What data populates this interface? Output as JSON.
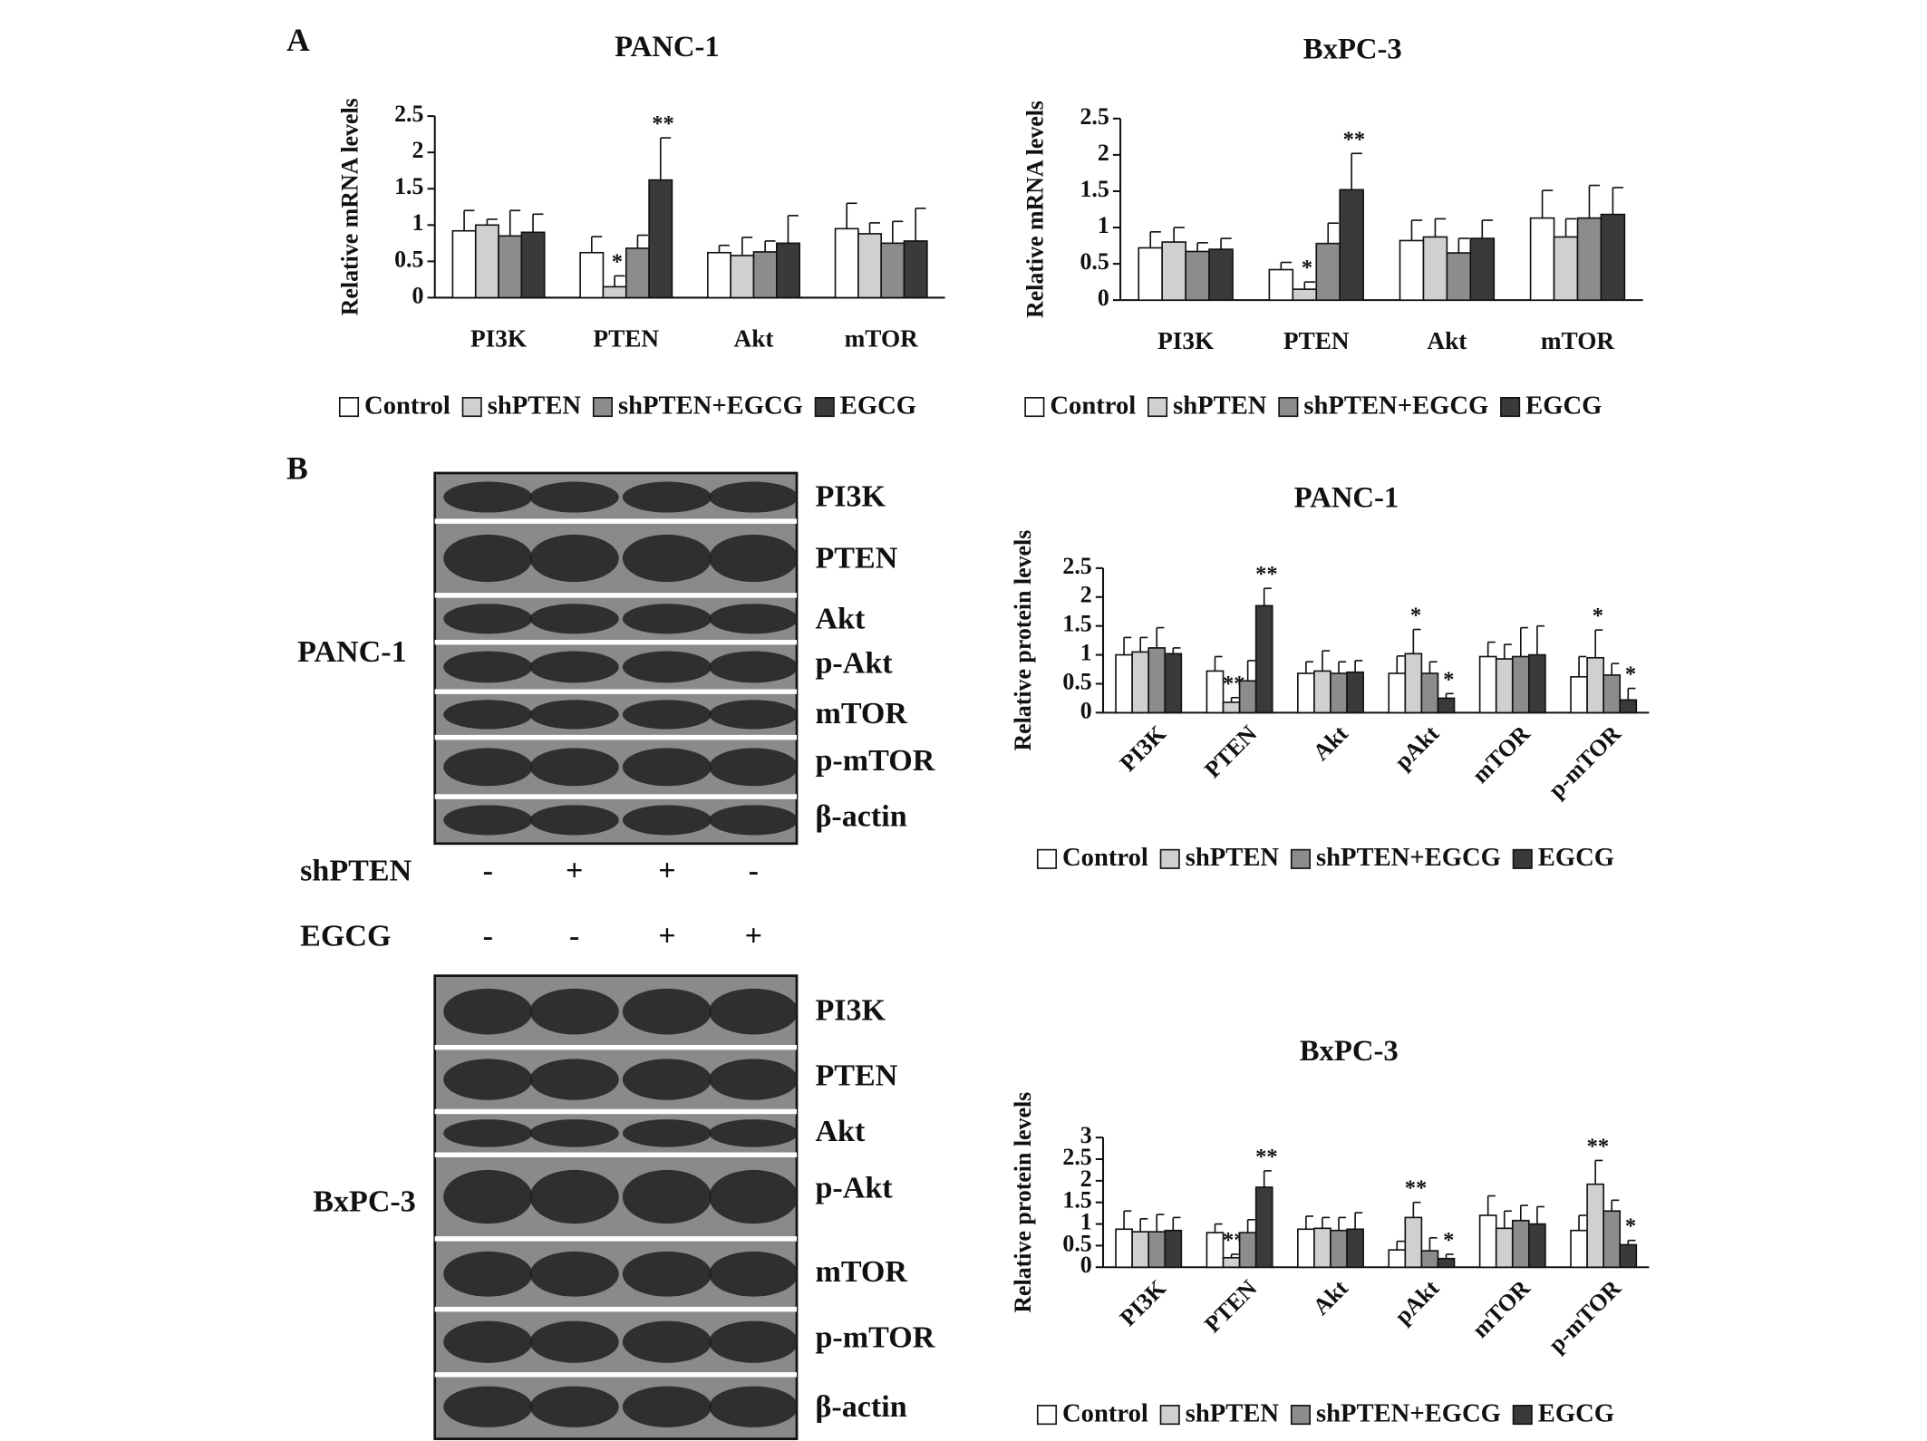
{
  "panel_labels": [
    "A",
    "B"
  ],
  "chart_data": [
    {
      "type": "bar",
      "title": "PANC-1",
      "ylabel": "Relative mRNA levels",
      "categories": [
        "PI3K",
        "PTEN",
        "Akt",
        "mTOR"
      ],
      "ylim": [
        0,
        2.5
      ],
      "yticks": [
        0,
        0.5,
        1,
        1.5,
        2,
        2.5
      ],
      "series": [
        {
          "name": "Control",
          "color": "#ffffff",
          "values": [
            0.92,
            0.62,
            0.62,
            0.95
          ],
          "errors": [
            0.28,
            0.22,
            0.1,
            0.35
          ],
          "significance": [
            null,
            null,
            null,
            null
          ]
        },
        {
          "name": "shPTEN",
          "color": "#d0d0d0",
          "values": [
            1.0,
            0.15,
            0.58,
            0.88
          ],
          "errors": [
            0.08,
            0.15,
            0.25,
            0.15
          ],
          "significance": [
            null,
            "*",
            null,
            null
          ]
        },
        {
          "name": "shPTEN+EGCG",
          "color": "#8c8c8c",
          "values": [
            0.85,
            0.68,
            0.63,
            0.75
          ],
          "errors": [
            0.35,
            0.18,
            0.15,
            0.3
          ],
          "significance": [
            null,
            null,
            null,
            null
          ]
        },
        {
          "name": "EGCG",
          "color": "#3a3a3a",
          "values": [
            0.9,
            1.62,
            0.75,
            0.78
          ],
          "errors": [
            0.25,
            0.58,
            0.38,
            0.45
          ],
          "significance": [
            null,
            "**",
            null,
            null
          ]
        }
      ]
    },
    {
      "type": "bar",
      "title": "BxPC-3",
      "ylabel": "Relative mRNA levels",
      "categories": [
        "PI3K",
        "PTEN",
        "Akt",
        "mTOR"
      ],
      "ylim": [
        0,
        2.5
      ],
      "yticks": [
        0,
        0.5,
        1,
        1.5,
        2,
        2.5
      ],
      "series": [
        {
          "name": "Control",
          "color": "#ffffff",
          "values": [
            0.72,
            0.42,
            0.82,
            1.13
          ],
          "errors": [
            0.22,
            0.1,
            0.28,
            0.38
          ],
          "significance": [
            null,
            null,
            null,
            null
          ]
        },
        {
          "name": "shPTEN",
          "color": "#d0d0d0",
          "values": [
            0.8,
            0.15,
            0.87,
            0.87
          ],
          "errors": [
            0.2,
            0.1,
            0.25,
            0.25
          ],
          "significance": [
            null,
            "*",
            null,
            null
          ]
        },
        {
          "name": "shPTEN+EGCG",
          "color": "#8c8c8c",
          "values": [
            0.67,
            0.78,
            0.65,
            1.13
          ],
          "errors": [
            0.12,
            0.28,
            0.2,
            0.45
          ],
          "significance": [
            null,
            null,
            null,
            null
          ]
        },
        {
          "name": "EGCG",
          "color": "#3a3a3a",
          "values": [
            0.7,
            1.52,
            0.85,
            1.18
          ],
          "errors": [
            0.15,
            0.5,
            0.25,
            0.37
          ],
          "significance": [
            null,
            "**",
            null,
            null
          ]
        }
      ]
    },
    {
      "type": "bar",
      "title": "PANC-1",
      "ylabel": "Relative protein levels",
      "categories": [
        "PI3K",
        "PTEN",
        "Akt",
        "pAkt",
        "mTOR",
        "p-mTOR"
      ],
      "ylim": [
        0,
        2.5
      ],
      "yticks": [
        0,
        0.5,
        1,
        1.5,
        2,
        2.5
      ],
      "series": [
        {
          "name": "Control",
          "color": "#ffffff",
          "values": [
            1.0,
            0.72,
            0.68,
            0.68,
            0.97,
            0.62
          ],
          "errors": [
            0.3,
            0.25,
            0.2,
            0.3,
            0.25,
            0.35
          ],
          "significance": [
            null,
            null,
            null,
            null,
            null,
            null
          ]
        },
        {
          "name": "shPTEN",
          "color": "#d0d0d0",
          "values": [
            1.05,
            0.18,
            0.72,
            1.02,
            0.93,
            0.95
          ],
          "errors": [
            0.25,
            0.08,
            0.35,
            0.42,
            0.25,
            0.48
          ],
          "significance": [
            null,
            "**",
            null,
            "*",
            null,
            "*"
          ]
        },
        {
          "name": "shPTEN+EGCG",
          "color": "#8c8c8c",
          "values": [
            1.12,
            0.55,
            0.68,
            0.68,
            0.97,
            0.65
          ],
          "errors": [
            0.35,
            0.35,
            0.2,
            0.2,
            0.5,
            0.2
          ],
          "significance": [
            null,
            null,
            null,
            null,
            null,
            null
          ]
        },
        {
          "name": "EGCG",
          "color": "#3a3a3a",
          "values": [
            1.02,
            1.85,
            0.7,
            0.25,
            1.0,
            0.22
          ],
          "errors": [
            0.1,
            0.3,
            0.2,
            0.08,
            0.5,
            0.2
          ],
          "significance": [
            null,
            "**",
            null,
            "*",
            null,
            "*"
          ]
        }
      ]
    },
    {
      "type": "bar",
      "title": "BxPC-3",
      "ylabel": "Relative protein levels",
      "categories": [
        "PI3K",
        "PTEN",
        "Akt",
        "pAkt",
        "mTOR",
        "p-mTOR"
      ],
      "ylim": [
        0,
        3
      ],
      "yticks": [
        0,
        0.5,
        1,
        1.5,
        2,
        2.5,
        3
      ],
      "series": [
        {
          "name": "Control",
          "color": "#ffffff",
          "values": [
            0.88,
            0.8,
            0.88,
            0.4,
            1.2,
            0.85
          ],
          "errors": [
            0.42,
            0.2,
            0.3,
            0.2,
            0.45,
            0.35
          ],
          "significance": [
            null,
            null,
            null,
            null,
            null,
            null
          ]
        },
        {
          "name": "shPTEN",
          "color": "#d0d0d0",
          "values": [
            0.82,
            0.22,
            0.9,
            1.15,
            0.9,
            1.92
          ],
          "errors": [
            0.3,
            0.08,
            0.25,
            0.35,
            0.4,
            0.55
          ],
          "significance": [
            null,
            "**",
            null,
            "**",
            null,
            "**"
          ]
        },
        {
          "name": "shPTEN+EGCG",
          "color": "#8c8c8c",
          "values": [
            0.82,
            0.8,
            0.85,
            0.38,
            1.08,
            1.3
          ],
          "errors": [
            0.4,
            0.3,
            0.3,
            0.3,
            0.35,
            0.25
          ],
          "significance": [
            null,
            null,
            null,
            null,
            null,
            null
          ]
        },
        {
          "name": "EGCG",
          "color": "#3a3a3a",
          "values": [
            0.85,
            1.85,
            0.88,
            0.2,
            1.0,
            0.52
          ],
          "errors": [
            0.3,
            0.38,
            0.38,
            0.1,
            0.4,
            0.1
          ],
          "significance": [
            null,
            "**",
            null,
            "*",
            null,
            "*"
          ]
        }
      ]
    }
  ],
  "blots": [
    {
      "cell_line": "PANC-1",
      "proteins": [
        "PI3K",
        "PTEN",
        "Akt",
        "p-Akt",
        "mTOR",
        "p-mTOR",
        "β-actin"
      ]
    },
    {
      "cell_line": "BxPC-3",
      "proteins": [
        "PI3K",
        "PTEN",
        "Akt",
        "p-Akt",
        "mTOR",
        "p-mTOR",
        "β-actin"
      ]
    }
  ],
  "treatments": [
    {
      "label": "shPTEN",
      "signs": [
        "-",
        "+",
        "+",
        "-"
      ]
    },
    {
      "label": "EGCG",
      "signs": [
        "-",
        "-",
        "+",
        "+"
      ]
    }
  ]
}
